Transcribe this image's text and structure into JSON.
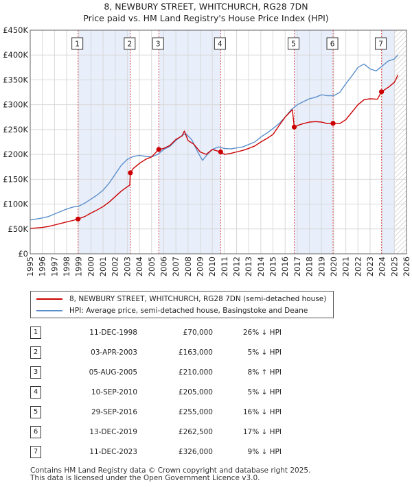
{
  "header": {
    "title": "8, NEWBURY STREET, WHITCHURCH, RG28 7DN",
    "subtitle": "Price paid vs. HM Land Registry's House Price Index (HPI)"
  },
  "chart_data": {
    "type": "line",
    "title": "8, NEWBURY STREET, WHITCHURCH, RG28 7DN",
    "xlim": [
      1995,
      2026
    ],
    "ylim": [
      0,
      450000
    ],
    "y_ticks": [
      0,
      50000,
      100000,
      150000,
      200000,
      250000,
      300000,
      350000,
      400000,
      450000
    ],
    "y_tick_labels": [
      "£0",
      "£50K",
      "£100K",
      "£150K",
      "£200K",
      "£250K",
      "£300K",
      "£350K",
      "£400K",
      "£450K"
    ],
    "x_ticks": [
      1995,
      1996,
      1997,
      1998,
      1999,
      2000,
      2001,
      2002,
      2003,
      2004,
      2005,
      2006,
      2007,
      2008,
      2009,
      2010,
      2011,
      2012,
      2013,
      2014,
      2015,
      2016,
      2017,
      2018,
      2019,
      2020,
      2021,
      2022,
      2023,
      2024,
      2025,
      2026
    ],
    "future_start": 2025.0,
    "colors": {
      "property": "#cc0000",
      "hpi": "#5b8fcc",
      "shade": "#e8eefa",
      "hatch": "#b0b0b0",
      "vline": "#e05050"
    },
    "series": [
      {
        "name": "8, NEWBURY STREET, WHITCHURCH, RG28 7DN (semi-detached house)",
        "x": [
          1995.0,
          1995.5,
          1996.0,
          1996.5,
          1997.0,
          1997.5,
          1998.0,
          1998.5,
          1998.94,
          1999.5,
          2000.0,
          2000.5,
          2001.0,
          2001.5,
          2002.0,
          2002.5,
          2003.0,
          2003.2,
          2003.25,
          2003.5,
          2004.0,
          2004.5,
          2005.0,
          2005.59,
          2006.0,
          2006.5,
          2007.0,
          2007.5,
          2007.7,
          2008.0,
          2008.5,
          2009.0,
          2009.5,
          2010.0,
          2010.69,
          2011.0,
          2011.5,
          2012.0,
          2012.5,
          2013.0,
          2013.5,
          2014.0,
          2014.5,
          2015.0,
          2015.5,
          2016.0,
          2016.6,
          2016.75,
          2017.0,
          2017.5,
          2018.0,
          2018.5,
          2019.0,
          2019.5,
          2019.95,
          2020.5,
          2021.0,
          2021.5,
          2022.0,
          2022.5,
          2023.0,
          2023.6,
          2023.94,
          2024.5,
          2025.0,
          2025.3
        ],
        "y": [
          51000,
          52000,
          53000,
          55000,
          58000,
          61000,
          64000,
          67000,
          70000,
          75000,
          82000,
          88000,
          95000,
          104000,
          115000,
          126000,
          135000,
          138000,
          163000,
          172000,
          182000,
          190000,
          195000,
          210000,
          212000,
          218000,
          230000,
          237000,
          247000,
          228000,
          220000,
          205000,
          200000,
          210000,
          205000,
          200000,
          202000,
          205000,
          208000,
          212000,
          217000,
          225000,
          232000,
          240000,
          258000,
          275000,
          290000,
          255000,
          258000,
          262000,
          265000,
          266000,
          265000,
          262000,
          262500,
          262000,
          270000,
          285000,
          300000,
          310000,
          312000,
          311000,
          326000,
          335000,
          345000,
          360000
        ]
      },
      {
        "name": "HPI: Average price, semi-detached house, Basingstoke and Deane",
        "x": [
          1995.0,
          1995.5,
          1996.0,
          1996.5,
          1997.0,
          1997.5,
          1998.0,
          1998.5,
          1999.0,
          1999.5,
          2000.0,
          2000.5,
          2001.0,
          2001.5,
          2002.0,
          2002.5,
          2003.0,
          2003.5,
          2004.0,
          2004.5,
          2005.0,
          2005.5,
          2006.0,
          2006.5,
          2007.0,
          2007.5,
          2007.8,
          2008.3,
          2008.8,
          2009.2,
          2009.6,
          2010.0,
          2010.5,
          2011.0,
          2011.5,
          2012.0,
          2012.5,
          2013.0,
          2013.5,
          2014.0,
          2014.5,
          2015.0,
          2015.5,
          2016.0,
          2016.5,
          2017.0,
          2017.5,
          2018.0,
          2018.5,
          2019.0,
          2019.5,
          2020.0,
          2020.5,
          2021.0,
          2021.5,
          2022.0,
          2022.5,
          2023.0,
          2023.5,
          2024.0,
          2024.5,
          2025.0,
          2025.3
        ],
        "y": [
          68000,
          70000,
          72000,
          75000,
          80000,
          85000,
          90000,
          94000,
          96000,
          102000,
          110000,
          118000,
          128000,
          142000,
          160000,
          178000,
          190000,
          196000,
          198000,
          196000,
          195000,
          200000,
          210000,
          216000,
          228000,
          238000,
          242000,
          230000,
          205000,
          188000,
          200000,
          210000,
          215000,
          212000,
          211000,
          213000,
          215000,
          220000,
          225000,
          235000,
          243000,
          252000,
          262000,
          275000,
          290000,
          300000,
          306000,
          312000,
          315000,
          320000,
          318000,
          318000,
          325000,
          342000,
          358000,
          375000,
          382000,
          372000,
          368000,
          378000,
          388000,
          392000,
          400000
        ]
      }
    ],
    "sales": [
      {
        "label": "1",
        "x": 1998.94,
        "y": 70000
      },
      {
        "label": "2",
        "x": 2003.25,
        "y": 163000
      },
      {
        "label": "3",
        "x": 2005.59,
        "y": 210000
      },
      {
        "label": "4",
        "x": 2010.69,
        "y": 205000
      },
      {
        "label": "5",
        "x": 2016.75,
        "y": 255000
      },
      {
        "label": "6",
        "x": 2019.95,
        "y": 262500
      },
      {
        "label": "7",
        "x": 2023.94,
        "y": 326000
      }
    ],
    "shaded_spans": [
      [
        1998.94,
        2003.25
      ],
      [
        2005.59,
        2010.69
      ],
      [
        2016.75,
        2019.95
      ],
      [
        2023.94,
        2025.0
      ]
    ]
  },
  "legend": {
    "property_label": "8, NEWBURY STREET, WHITCHURCH, RG28 7DN (semi-detached house)",
    "hpi_label": "HPI: Average price, semi-detached house, Basingstoke and Deane"
  },
  "transactions": [
    {
      "num": "1",
      "date": "11-DEC-1998",
      "price": "£70,000",
      "hpi": "26% ↓ HPI"
    },
    {
      "num": "2",
      "date": "03-APR-2003",
      "price": "£163,000",
      "hpi": "5% ↓ HPI"
    },
    {
      "num": "3",
      "date": "05-AUG-2005",
      "price": "£210,000",
      "hpi": "8% ↑ HPI"
    },
    {
      "num": "4",
      "date": "10-SEP-2010",
      "price": "£205,000",
      "hpi": "5% ↓ HPI"
    },
    {
      "num": "5",
      "date": "29-SEP-2016",
      "price": "£255,000",
      "hpi": "16% ↓ HPI"
    },
    {
      "num": "6",
      "date": "13-DEC-2019",
      "price": "£262,500",
      "hpi": "17% ↓ HPI"
    },
    {
      "num": "7",
      "date": "11-DEC-2023",
      "price": "£326,000",
      "hpi": "9% ↓ HPI"
    }
  ],
  "footer": {
    "line1": "Contains HM Land Registry data © Crown copyright and database right 2025.",
    "line2": "This data is licensed under the Open Government Licence v3.0."
  }
}
